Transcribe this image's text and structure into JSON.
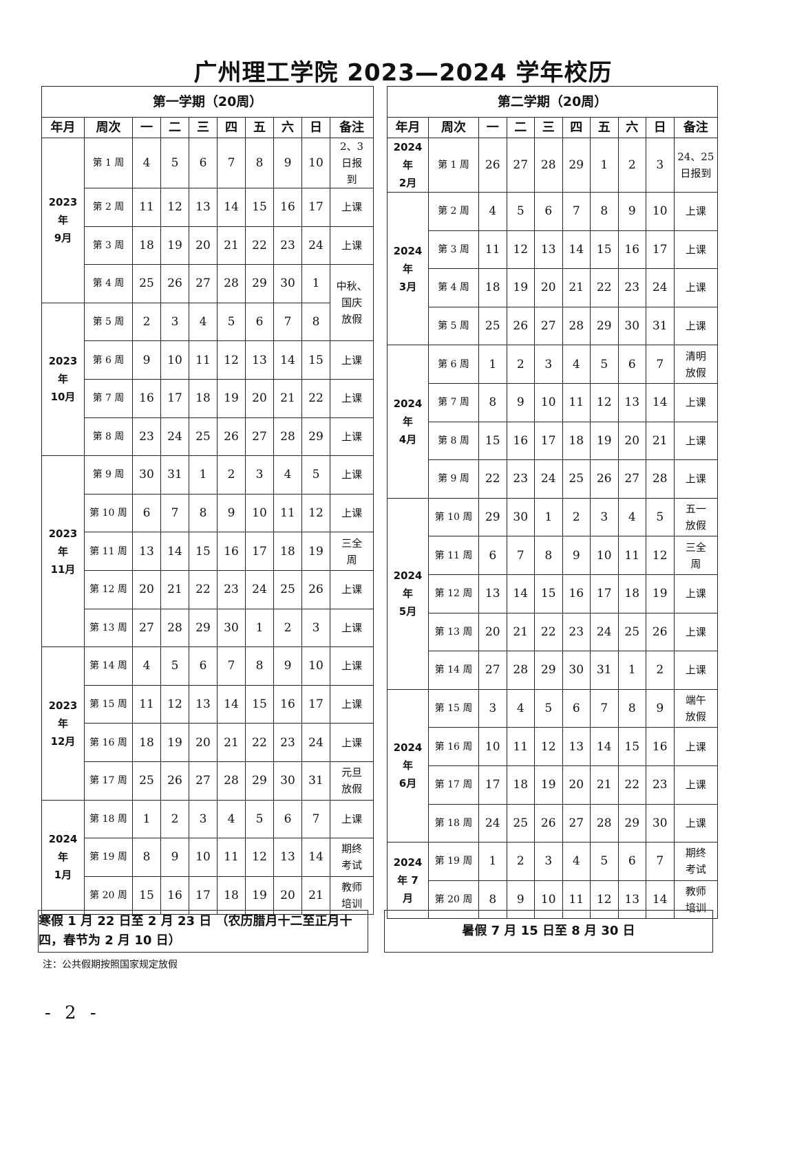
{
  "title": "广州理工学院 2023—2024 学年校历",
  "columns": [
    "年月",
    "周次",
    "一",
    "二",
    "三",
    "四",
    "五",
    "六",
    "日",
    "备注"
  ],
  "terms": [
    {
      "name": "第一学期（20周）",
      "months": [
        {
          "label": "2023\n年\n9月",
          "weeks": 4
        },
        {
          "label": "2023\n年\n10月",
          "weeks": 4
        },
        {
          "label": "2023\n年\n11月",
          "weeks": 5
        },
        {
          "label": "2023\n年\n12月",
          "weeks": 4
        },
        {
          "label": "2024\n年\n1月",
          "weeks": 3
        }
      ],
      "weeks": [
        {
          "label": "第 1 周",
          "days": [
            4,
            5,
            6,
            7,
            8,
            9,
            10
          ],
          "remark": "2、3\n日报\n到"
        },
        {
          "label": "第 2 周",
          "days": [
            11,
            12,
            13,
            14,
            15,
            16,
            17
          ],
          "remark": "上课"
        },
        {
          "label": "第 3 周",
          "days": [
            18,
            19,
            20,
            21,
            22,
            23,
            24
          ],
          "remark": "上课"
        },
        {
          "label": "第 4 周",
          "days": [
            25,
            26,
            27,
            28,
            29,
            30,
            1
          ],
          "remark": "中秋、\n国庆\n放假",
          "remark_span": 2
        },
        {
          "label": "第 5 周",
          "days": [
            2,
            3,
            4,
            5,
            6,
            7,
            8
          ]
        },
        {
          "label": "第 6 周",
          "days": [
            9,
            10,
            11,
            12,
            13,
            14,
            15
          ],
          "remark": "上课"
        },
        {
          "label": "第 7 周",
          "days": [
            16,
            17,
            18,
            19,
            20,
            21,
            22
          ],
          "remark": "上课"
        },
        {
          "label": "第 8 周",
          "days": [
            23,
            24,
            25,
            26,
            27,
            28,
            29
          ],
          "remark": "上课"
        },
        {
          "label": "第 9 周",
          "days": [
            30,
            31,
            1,
            2,
            3,
            4,
            5
          ],
          "remark": "上课"
        },
        {
          "label": "第 10 周",
          "days": [
            6,
            7,
            8,
            9,
            10,
            11,
            12
          ],
          "remark": "上课"
        },
        {
          "label": "第 11 周",
          "days": [
            13,
            14,
            15,
            16,
            17,
            18,
            19
          ],
          "remark": "三全\n周"
        },
        {
          "label": "第 12 周",
          "days": [
            20,
            21,
            22,
            23,
            24,
            25,
            26
          ],
          "remark": "上课"
        },
        {
          "label": "第 13 周",
          "days": [
            27,
            28,
            29,
            30,
            1,
            2,
            3
          ],
          "remark": "上课"
        },
        {
          "label": "第 14 周",
          "days": [
            4,
            5,
            6,
            7,
            8,
            9,
            10
          ],
          "remark": "上课"
        },
        {
          "label": "第 15 周",
          "days": [
            11,
            12,
            13,
            14,
            15,
            16,
            17
          ],
          "remark": "上课"
        },
        {
          "label": "第 16 周",
          "days": [
            18,
            19,
            20,
            21,
            22,
            23,
            24
          ],
          "remark": "上课"
        },
        {
          "label": "第 17 周",
          "days": [
            25,
            26,
            27,
            28,
            29,
            30,
            31
          ],
          "remark": "元旦\n放假"
        },
        {
          "label": "第 18 周",
          "days": [
            1,
            2,
            3,
            4,
            5,
            6,
            7
          ],
          "remark": "上课"
        },
        {
          "label": "第 19 周",
          "days": [
            8,
            9,
            10,
            11,
            12,
            13,
            14
          ],
          "remark": "期终\n考试"
        },
        {
          "label": "第 20 周",
          "days": [
            15,
            16,
            17,
            18,
            19,
            20,
            21
          ],
          "remark": "教师\n培训"
        }
      ],
      "footer": "寒假 1 月 22 日至 2 月 23 日\n（农历腊月十二至正月十四，春节为 2 月 10 日）"
    },
    {
      "name": "第二学期（20周）",
      "months": [
        {
          "label": "2024\n年\n2月",
          "weeks": 1
        },
        {
          "label": "2024\n年\n3月",
          "weeks": 4
        },
        {
          "label": "2024\n年\n4月",
          "weeks": 4
        },
        {
          "label": "2024\n年\n5月",
          "weeks": 5
        },
        {
          "label": "2024\n年\n6月",
          "weeks": 4
        },
        {
          "label": "2024\n年 7\n月",
          "weeks": 2
        }
      ],
      "weeks": [
        {
          "label": "第 1 周",
          "days": [
            26,
            27,
            28,
            29,
            1,
            2,
            3
          ],
          "remark": "24、25\n日报到"
        },
        {
          "label": "第 2 周",
          "days": [
            4,
            5,
            6,
            7,
            8,
            9,
            10
          ],
          "remark": "上课"
        },
        {
          "label": "第 3 周",
          "days": [
            11,
            12,
            13,
            14,
            15,
            16,
            17
          ],
          "remark": "上课"
        },
        {
          "label": "第 4 周",
          "days": [
            18,
            19,
            20,
            21,
            22,
            23,
            24
          ],
          "remark": "上课"
        },
        {
          "label": "第 5 周",
          "days": [
            25,
            26,
            27,
            28,
            29,
            30,
            31
          ],
          "remark": "上课"
        },
        {
          "label": "第 6 周",
          "days": [
            1,
            2,
            3,
            4,
            5,
            6,
            7
          ],
          "remark": "清明\n放假"
        },
        {
          "label": "第 7 周",
          "days": [
            8,
            9,
            10,
            11,
            12,
            13,
            14
          ],
          "remark": "上课"
        },
        {
          "label": "第 8 周",
          "days": [
            15,
            16,
            17,
            18,
            19,
            20,
            21
          ],
          "remark": "上课"
        },
        {
          "label": "第 9 周",
          "days": [
            22,
            23,
            24,
            25,
            26,
            27,
            28
          ],
          "remark": "上课"
        },
        {
          "label": "第 10 周",
          "days": [
            29,
            30,
            1,
            2,
            3,
            4,
            5
          ],
          "remark": "五一\n放假"
        },
        {
          "label": "第 11 周",
          "days": [
            6,
            7,
            8,
            9,
            10,
            11,
            12
          ],
          "remark": "三全\n周"
        },
        {
          "label": "第 12 周",
          "days": [
            13,
            14,
            15,
            16,
            17,
            18,
            19
          ],
          "remark": "上课"
        },
        {
          "label": "第 13 周",
          "days": [
            20,
            21,
            22,
            23,
            24,
            25,
            26
          ],
          "remark": "上课"
        },
        {
          "label": "第 14 周",
          "days": [
            27,
            28,
            29,
            30,
            31,
            1,
            2
          ],
          "remark": "上课"
        },
        {
          "label": "第 15 周",
          "days": [
            3,
            4,
            5,
            6,
            7,
            8,
            9
          ],
          "remark": "端午\n放假"
        },
        {
          "label": "第 16 周",
          "days": [
            10,
            11,
            12,
            13,
            14,
            15,
            16
          ],
          "remark": "上课"
        },
        {
          "label": "第 17 周",
          "days": [
            17,
            18,
            19,
            20,
            21,
            22,
            23
          ],
          "remark": "上课"
        },
        {
          "label": "第 18 周",
          "days": [
            24,
            25,
            26,
            27,
            28,
            29,
            30
          ],
          "remark": "上课"
        },
        {
          "label": "第 19 周",
          "days": [
            1,
            2,
            3,
            4,
            5,
            6,
            7
          ],
          "remark": "期终\n考试"
        },
        {
          "label": "第 20 周",
          "days": [
            8,
            9,
            10,
            11,
            12,
            13,
            14
          ],
          "remark": "教师\n培训"
        }
      ],
      "footer": "暑假 7 月 15 日至 8 月 30 日"
    }
  ],
  "note": "注：公共假期按照国家规定放假",
  "page_number": "- 2 -"
}
